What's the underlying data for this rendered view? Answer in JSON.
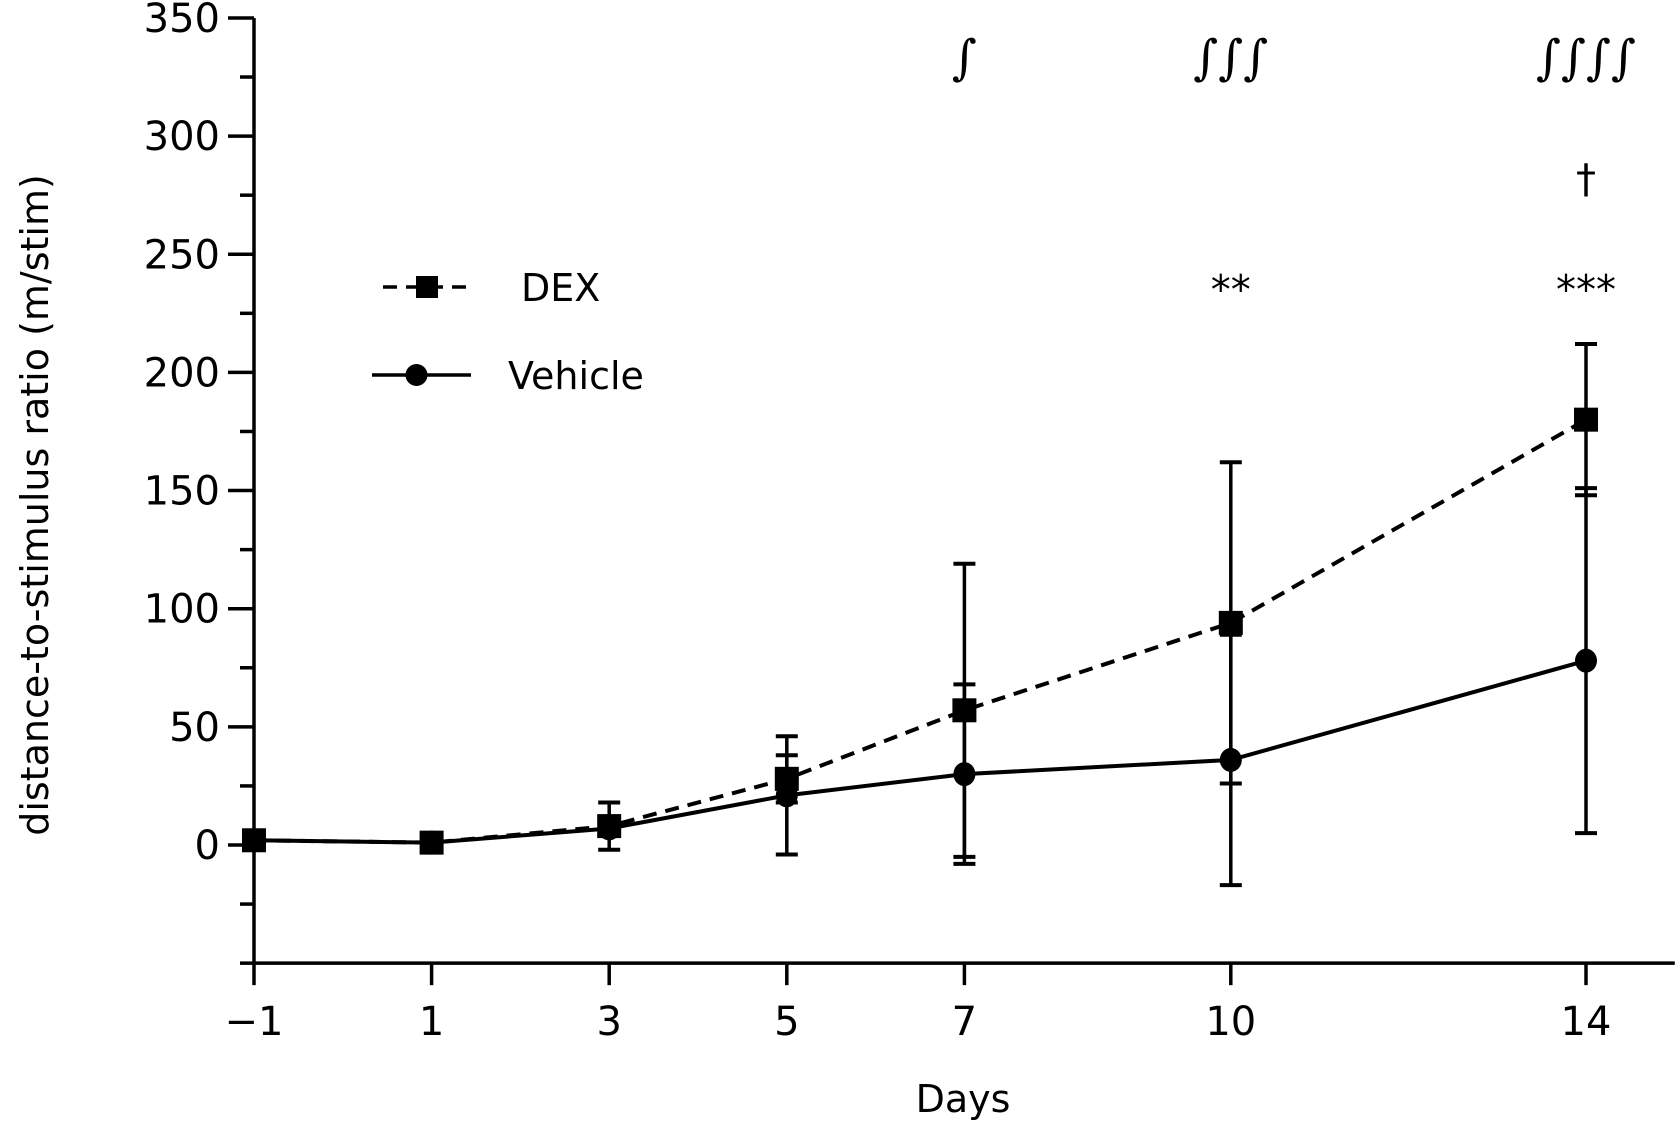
{
  "chart_data": {
    "type": "line",
    "title": "",
    "xlabel": "Days",
    "ylabel": "distance-to-stimulus ratio (m/stim)",
    "x": [
      -1,
      1,
      3,
      5,
      7,
      10,
      14
    ],
    "x_tick_labels": [
      "−1",
      "1",
      "3",
      "5",
      "7",
      "10",
      "14"
    ],
    "xlim": [
      -1,
      15
    ],
    "ylim": [
      -50,
      350
    ],
    "y_ticks": [
      0,
      50,
      100,
      150,
      200,
      250,
      300,
      350
    ],
    "y_tick_labels": [
      "0",
      "50",
      "100",
      "150",
      "200",
      "250",
      "300",
      "350"
    ],
    "y_minor_step": 25,
    "grid": false,
    "legend_position": "upper-left",
    "series": [
      {
        "name": "DEX",
        "marker": "square",
        "line": "dashed",
        "values": [
          2,
          1,
          8,
          28,
          57,
          94,
          180
        ],
        "error": [
          0,
          0,
          10,
          10,
          62,
          68,
          32
        ]
      },
      {
        "name": "Vehicle",
        "marker": "circle",
        "line": "solid",
        "values": [
          2,
          1,
          7,
          21,
          30,
          36,
          78
        ],
        "error": [
          0,
          0,
          3,
          25,
          38,
          53,
          73
        ]
      }
    ],
    "annotations": [
      {
        "text": "∫",
        "x": 7,
        "y": 333,
        "style": "integral"
      },
      {
        "text": "∫∫∫",
        "x": 10,
        "y": 333,
        "style": "integral"
      },
      {
        "text": "∫∫∫∫",
        "x": 14,
        "y": 333,
        "style": "integral"
      },
      {
        "text": "†",
        "x": 14,
        "y": 283,
        "style": "plain"
      },
      {
        "text": "**",
        "x": 10,
        "y": 236,
        "style": "plain"
      },
      {
        "text": "***",
        "x": 14,
        "y": 236,
        "style": "plain"
      }
    ]
  }
}
